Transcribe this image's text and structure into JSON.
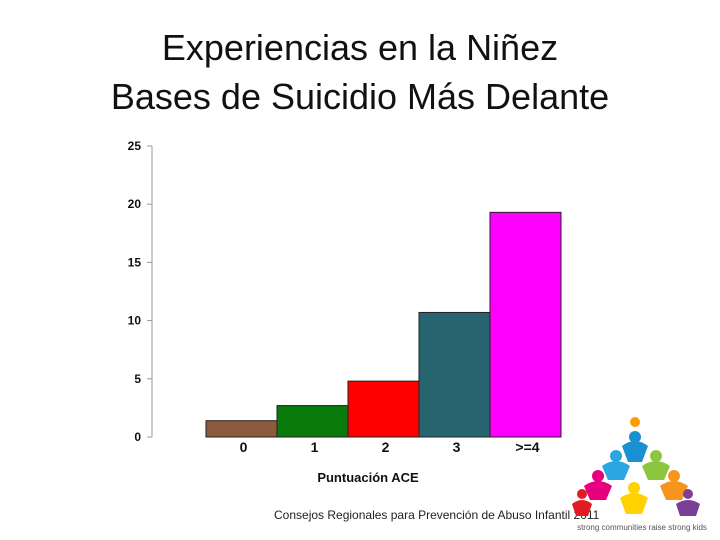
{
  "title_line1": "Experiencias en la Niñez",
  "title_line2": "Bases de Suicidio Más Delante",
  "source": "Consejos Regionales para Prevención de Abuso Infantil 2011",
  "logo": {
    "tagline": "strong communities raise strong kids"
  },
  "chart_data": {
    "type": "bar",
    "categories": [
      "0",
      "1",
      "2",
      "3",
      ">=4"
    ],
    "values": [
      1.4,
      2.7,
      4.8,
      10.7,
      19.3
    ],
    "colors": [
      "#8c5a3c",
      "#0a7a0a",
      "#ff0000",
      "#266470",
      "#ff00ff"
    ],
    "xlabel": "Puntuación ACE",
    "ylabel": "",
    "ylim": [
      0,
      25
    ],
    "yticks": [
      0,
      5,
      10,
      15,
      20,
      25
    ],
    "grid": false,
    "legend": "none"
  }
}
